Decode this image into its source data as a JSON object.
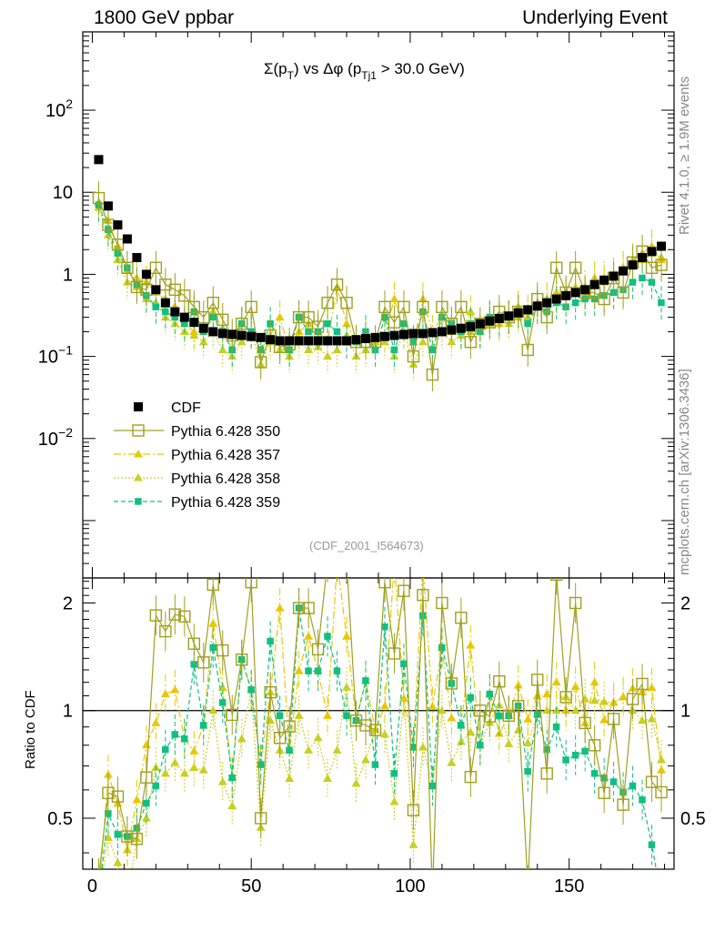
{
  "header": {
    "left": "1800 GeV ppbar",
    "right": "Underlying Event"
  },
  "side_labels": {
    "top": "Rivet 4.1.0, ≥ 1.9M events",
    "bottom": "mcplots.cern.ch [arXiv:1306.3436]"
  },
  "colors": {
    "data": "#000000",
    "p350": "#a0a020",
    "p357": "#e8c800",
    "p358": "#c8d020",
    "p359": "#10c080",
    "axis": "#000000"
  },
  "chart_data": [
    {
      "type": "scatter",
      "panel": "main",
      "title": "Σ(p_T) vs Δφ (p_Tj1 > 30.0 GeV)",
      "title_parts": {
        "a": "Σ(p",
        "a_sub": "T",
        "b": ") vs Δφ (p",
        "b_sub": "Tj1",
        "c": " > 30.0 GeV)"
      },
      "watermark": "(CDF_2001_I564673)",
      "yscale": "log",
      "xlim": [
        -3,
        183
      ],
      "ylim": [
        0.0002,
        900
      ],
      "ytick_labels": [
        "10^-2",
        "10^-1",
        "1",
        "10",
        "10^2"
      ],
      "ytick_label_parts": [
        {
          "base": "10",
          "exp": "−2"
        },
        {
          "base": "10",
          "exp": "−1"
        },
        {
          "base": "1",
          "exp": ""
        },
        {
          "base": "10",
          "exp": ""
        },
        {
          "base": "10",
          "exp": "2"
        }
      ],
      "legend_position": "center-left",
      "x": [
        2,
        5,
        8,
        11,
        14,
        17,
        20,
        23,
        26,
        29,
        32,
        35,
        38,
        41,
        44,
        47,
        50,
        53,
        56,
        59,
        62,
        65,
        68,
        71,
        74,
        77,
        80,
        83,
        86,
        89,
        92,
        95,
        98,
        101,
        104,
        107,
        110,
        113,
        116,
        119,
        122,
        125,
        128,
        131,
        134,
        137,
        140,
        143,
        146,
        149,
        152,
        155,
        158,
        161,
        164,
        167,
        170,
        173,
        176,
        179
      ],
      "series": [
        {
          "name": "CDF",
          "key": "data",
          "marker": "square-filled",
          "values": [
            25,
            6.8,
            4.0,
            2.7,
            1.6,
            1.0,
            0.65,
            0.45,
            0.35,
            0.3,
            0.26,
            0.22,
            0.2,
            0.19,
            0.185,
            0.18,
            0.175,
            0.17,
            0.16,
            0.155,
            0.155,
            0.155,
            0.155,
            0.155,
            0.155,
            0.155,
            0.155,
            0.16,
            0.165,
            0.17,
            0.175,
            0.18,
            0.185,
            0.19,
            0.19,
            0.195,
            0.2,
            0.21,
            0.22,
            0.23,
            0.25,
            0.27,
            0.29,
            0.31,
            0.34,
            0.37,
            0.41,
            0.45,
            0.5,
            0.55,
            0.6,
            0.65,
            0.75,
            0.85,
            0.95,
            1.1,
            1.3,
            1.6,
            1.9,
            2.2
          ]
        },
        {
          "name": "Pythia 6.428 350",
          "key": "p350",
          "marker": "square-open",
          "values": [
            8.5,
            4.0,
            2.3,
            1.2,
            0.7,
            0.65,
            1.2,
            0.75,
            0.65,
            0.55,
            0.4,
            0.3,
            0.45,
            0.28,
            0.18,
            0.25,
            0.4,
            0.085,
            0.18,
            0.13,
            0.14,
            0.3,
            0.3,
            0.23,
            0.45,
            0.75,
            0.45,
            0.15,
            0.15,
            0.15,
            0.4,
            0.26,
            0.4,
            0.1,
            0.4,
            0.06,
            0.4,
            0.25,
            0.4,
            0.15,
            0.25,
            0.26,
            0.35,
            0.3,
            0.35,
            0.12,
            0.5,
            0.3,
            1.2,
            0.6,
            1.2,
            0.6,
            0.6,
            0.5,
            0.9,
            0.6,
            1.4,
            1.9,
            1.2,
            1.3
          ]
        },
        {
          "name": "Pythia 6.428 357",
          "key": "p357",
          "marker": "triangle-dashdot",
          "values": [
            7.5,
            4.5,
            2.2,
            1.1,
            0.9,
            0.8,
            0.6,
            0.5,
            0.4,
            0.25,
            0.2,
            0.2,
            0.35,
            0.22,
            0.12,
            0.25,
            0.2,
            0.12,
            0.18,
            0.3,
            0.12,
            0.2,
            0.25,
            0.2,
            0.15,
            0.7,
            0.25,
            0.15,
            0.2,
            0.15,
            0.18,
            0.5,
            0.2,
            0.15,
            0.5,
            0.2,
            0.3,
            0.2,
            0.2,
            0.35,
            0.2,
            0.3,
            0.25,
            0.3,
            0.4,
            0.35,
            0.45,
            0.5,
            0.6,
            0.55,
            0.7,
            0.6,
            0.9,
            0.8,
            1.0,
            1.2,
            1.5,
            1.8,
            2.2,
            1.5
          ]
        },
        {
          "name": "Pythia 6.428 358",
          "key": "p358",
          "marker": "triangle-dotted",
          "values": [
            6.5,
            3.0,
            1.5,
            0.8,
            0.7,
            0.5,
            0.45,
            0.3,
            0.25,
            0.2,
            0.18,
            0.15,
            0.2,
            0.12,
            0.1,
            0.15,
            0.2,
            0.08,
            0.15,
            0.12,
            0.1,
            0.15,
            0.12,
            0.13,
            0.1,
            0.12,
            0.18,
            0.1,
            0.12,
            0.15,
            0.15,
            0.1,
            0.2,
            0.08,
            0.15,
            0.12,
            0.2,
            0.15,
            0.18,
            0.2,
            0.2,
            0.25,
            0.3,
            0.25,
            0.3,
            0.3,
            0.4,
            0.45,
            0.5,
            0.6,
            0.6,
            0.7,
            0.8,
            0.9,
            1.0,
            1.2,
            1.3,
            1.5,
            1.8,
            1.6
          ]
        },
        {
          "name": "Pythia 6.428 359",
          "key": "p359",
          "marker": "square-dashed",
          "values": [
            7.0,
            3.5,
            1.8,
            1.2,
            0.75,
            0.55,
            0.4,
            0.35,
            0.3,
            0.25,
            0.35,
            0.2,
            0.3,
            0.2,
            0.12,
            0.25,
            0.2,
            0.12,
            0.25,
            0.15,
            0.12,
            0.3,
            0.2,
            0.2,
            0.25,
            0.2,
            0.15,
            0.15,
            0.2,
            0.12,
            0.3,
            0.12,
            0.25,
            0.15,
            0.35,
            0.12,
            0.3,
            0.25,
            0.2,
            0.25,
            0.2,
            0.3,
            0.28,
            0.3,
            0.35,
            0.25,
            0.4,
            0.35,
            0.45,
            0.4,
            0.45,
            0.5,
            0.5,
            0.55,
            0.6,
            0.65,
            0.8,
            0.9,
            0.8,
            0.45
          ]
        }
      ]
    },
    {
      "type": "scatter",
      "panel": "ratio",
      "ylabel": "Ratio to CDF",
      "yscale": "log",
      "xlim": [
        -3,
        183
      ],
      "ylim": [
        0.36,
        2.35
      ],
      "reference_line": 1,
      "ytick_values": [
        0.5,
        1,
        2
      ],
      "ytick_labels": [
        "0.5",
        "1",
        "2"
      ],
      "xtick_values": [
        0,
        50,
        100,
        150
      ],
      "xtick_labels": [
        "0",
        "50",
        "100",
        "150"
      ]
    }
  ]
}
